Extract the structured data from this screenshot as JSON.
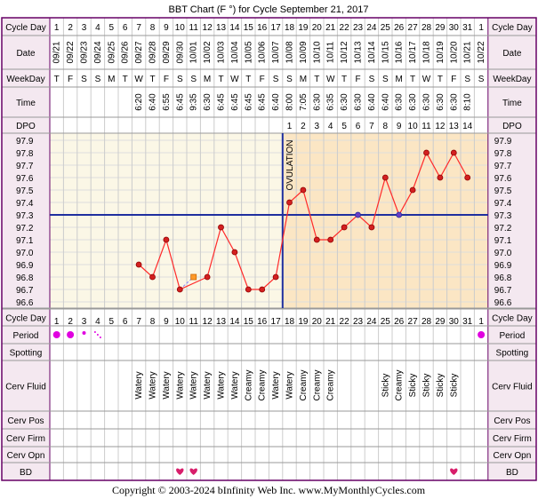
{
  "title": "BBT Chart (F °) for Cycle September 21, 2017",
  "copyright": "Copyright © 2003-2024 bInfinity Web Inc.     www.MyMonthlyCycles.com",
  "row_labels": {
    "cycle_day": "Cycle Day",
    "date": "Date",
    "weekday": "WeekDay",
    "time": "Time",
    "dpo": "DPO",
    "period": "Period",
    "spotting": "Spotting",
    "cerv_fluid": "Cerv Fluid",
    "cerv_pos": "Cerv Pos",
    "cerv_firm": "Cerv Firm",
    "cerv_opn": "Cerv Opn",
    "bd": "BD"
  },
  "ovulation_label": "OVULATION",
  "colors": {
    "border": "#660066",
    "header_bg": "#f4e8f0",
    "pre_ovulation_bg": "#fbf7e6",
    "post_ovulation_bg": "#fbe6c4",
    "grid": "#dddddd",
    "line": "#ff2a2a",
    "point_fill": "#d32020",
    "coverline": "#1f2f9f",
    "ovulation_line": "#1f2f9f",
    "period_dot": "#e000e0",
    "heart": "#d81e6b"
  },
  "days": [
    {
      "d": "1",
      "date": "09/21",
      "wd": "T",
      "time": "",
      "dpo": "",
      "period": "heavy",
      "fluid": "",
      "bd": ""
    },
    {
      "d": "2",
      "date": "09/22",
      "wd": "F",
      "time": "",
      "dpo": "",
      "period": "heavy",
      "fluid": "",
      "bd": ""
    },
    {
      "d": "3",
      "date": "09/23",
      "wd": "S",
      "time": "",
      "dpo": "",
      "period": "medium",
      "fluid": "",
      "bd": ""
    },
    {
      "d": "4",
      "date": "09/24",
      "wd": "S",
      "time": "",
      "dpo": "",
      "period": "light",
      "fluid": "",
      "bd": ""
    },
    {
      "d": "5",
      "date": "09/25",
      "wd": "M",
      "time": "",
      "dpo": "",
      "period": "",
      "fluid": "",
      "bd": ""
    },
    {
      "d": "6",
      "date": "09/26",
      "wd": "T",
      "time": "",
      "dpo": "",
      "period": "",
      "fluid": "",
      "bd": ""
    },
    {
      "d": "7",
      "date": "09/27",
      "wd": "W",
      "time": "6:20",
      "dpo": "",
      "period": "",
      "fluid": "Watery",
      "bd": ""
    },
    {
      "d": "8",
      "date": "09/28",
      "wd": "T",
      "time": "6:40",
      "dpo": "",
      "period": "",
      "fluid": "Watery",
      "bd": ""
    },
    {
      "d": "9",
      "date": "09/29",
      "wd": "F",
      "time": "6:55",
      "dpo": "",
      "period": "",
      "fluid": "Watery",
      "bd": ""
    },
    {
      "d": "10",
      "date": "09/30",
      "wd": "S",
      "time": "6:45",
      "dpo": "",
      "period": "",
      "fluid": "Watery",
      "bd": "heart"
    },
    {
      "d": "11",
      "date": "10/01",
      "wd": "S",
      "time": "9:35",
      "dpo": "",
      "period": "",
      "fluid": "Watery",
      "bd": "heart"
    },
    {
      "d": "12",
      "date": "10/02",
      "wd": "M",
      "time": "6:30",
      "dpo": "",
      "period": "",
      "fluid": "Watery",
      "bd": ""
    },
    {
      "d": "13",
      "date": "10/03",
      "wd": "T",
      "time": "6:45",
      "dpo": "",
      "period": "",
      "fluid": "Watery",
      "bd": ""
    },
    {
      "d": "14",
      "date": "10/04",
      "wd": "W",
      "time": "6:45",
      "dpo": "",
      "period": "",
      "fluid": "Watery",
      "bd": ""
    },
    {
      "d": "15",
      "date": "10/05",
      "wd": "T",
      "time": "6:45",
      "dpo": "",
      "period": "",
      "fluid": "Creamy",
      "bd": ""
    },
    {
      "d": "16",
      "date": "10/06",
      "wd": "F",
      "time": "6:45",
      "dpo": "",
      "period": "",
      "fluid": "Creamy",
      "bd": ""
    },
    {
      "d": "17",
      "date": "10/07",
      "wd": "S",
      "time": "6:40",
      "dpo": "",
      "period": "",
      "fluid": "Watery",
      "bd": ""
    },
    {
      "d": "18",
      "date": "10/08",
      "wd": "S",
      "time": "8:00",
      "dpo": "1",
      "period": "",
      "fluid": "Watery",
      "bd": ""
    },
    {
      "d": "19",
      "date": "10/09",
      "wd": "M",
      "time": "7:05",
      "dpo": "2",
      "period": "",
      "fluid": "Creamy",
      "bd": ""
    },
    {
      "d": "20",
      "date": "10/10",
      "wd": "T",
      "time": "6:30",
      "dpo": "3",
      "period": "",
      "fluid": "Creamy",
      "bd": ""
    },
    {
      "d": "21",
      "date": "10/11",
      "wd": "W",
      "time": "6:35",
      "dpo": "4",
      "period": "",
      "fluid": "Creamy",
      "bd": ""
    },
    {
      "d": "22",
      "date": "10/12",
      "wd": "T",
      "time": "6:30",
      "dpo": "5",
      "period": "",
      "fluid": "",
      "bd": ""
    },
    {
      "d": "23",
      "date": "10/13",
      "wd": "F",
      "time": "6:30",
      "dpo": "6",
      "period": "",
      "fluid": "",
      "bd": ""
    },
    {
      "d": "24",
      "date": "10/14",
      "wd": "S",
      "time": "6:40",
      "dpo": "7",
      "period": "",
      "fluid": "",
      "bd": ""
    },
    {
      "d": "25",
      "date": "10/15",
      "wd": "S",
      "time": "6:40",
      "dpo": "8",
      "period": "",
      "fluid": "Sticky",
      "bd": ""
    },
    {
      "d": "26",
      "date": "10/16",
      "wd": "M",
      "time": "6:30",
      "dpo": "9",
      "period": "",
      "fluid": "Creamy",
      "bd": ""
    },
    {
      "d": "27",
      "date": "10/17",
      "wd": "T",
      "time": "6:30",
      "dpo": "10",
      "period": "",
      "fluid": "Sticky",
      "bd": ""
    },
    {
      "d": "28",
      "date": "10/18",
      "wd": "W",
      "time": "6:30",
      "dpo": "11",
      "period": "",
      "fluid": "Sticky",
      "bd": ""
    },
    {
      "d": "29",
      "date": "10/19",
      "wd": "T",
      "time": "6:30",
      "dpo": "12",
      "period": "",
      "fluid": "Sticky",
      "bd": ""
    },
    {
      "d": "30",
      "date": "10/20",
      "wd": "F",
      "time": "6:30",
      "dpo": "13",
      "period": "",
      "fluid": "Sticky",
      "bd": "heart"
    },
    {
      "d": "31",
      "date": "10/21",
      "wd": "S",
      "time": "8:10",
      "dpo": "14",
      "period": "",
      "fluid": "",
      "bd": ""
    },
    {
      "d": "1",
      "date": "10/22",
      "wd": "S",
      "time": "",
      "dpo": "",
      "period": "heavy",
      "fluid": "",
      "bd": ""
    }
  ],
  "chart_data": {
    "type": "line",
    "x_label": "Cycle Day",
    "y_ticks": [
      "97.9",
      "97.8",
      "97.7",
      "97.6",
      "97.5",
      "97.4",
      "97.3",
      "97.2",
      "97.1",
      "97.0",
      "96.9",
      "96.8",
      "96.7",
      "96.6"
    ],
    "ylim": [
      96.6,
      97.9
    ],
    "coverline": 97.3,
    "ovulation_after_day": 17,
    "series": [
      {
        "points": [
          {
            "day": 7,
            "temp": 96.9
          },
          {
            "day": 8,
            "temp": 96.8
          },
          {
            "day": 9,
            "temp": 97.1
          },
          {
            "day": 10,
            "temp": 96.7
          },
          {
            "day": 12,
            "temp": 96.8
          },
          {
            "day": 13,
            "temp": 97.2
          },
          {
            "day": 14,
            "temp": 97.0
          },
          {
            "day": 15,
            "temp": 96.7
          },
          {
            "day": 16,
            "temp": 96.7
          },
          {
            "day": 17,
            "temp": 96.8
          },
          {
            "day": 18,
            "temp": 97.4
          },
          {
            "day": 19,
            "temp": 97.5
          },
          {
            "day": 20,
            "temp": 97.1
          },
          {
            "day": 21,
            "temp": 97.1
          },
          {
            "day": 22,
            "temp": 97.2
          },
          {
            "day": 23,
            "temp": 97.3
          },
          {
            "day": 24,
            "temp": 97.2
          },
          {
            "day": 25,
            "temp": 97.6
          },
          {
            "day": 26,
            "temp": 97.3
          },
          {
            "day": 27,
            "temp": 97.5
          },
          {
            "day": 28,
            "temp": 97.8
          },
          {
            "day": 29,
            "temp": 97.6
          },
          {
            "day": 30,
            "temp": 97.8
          },
          {
            "day": 31,
            "temp": 97.6
          }
        ],
        "highlight_days": [
          23,
          26
        ]
      }
    ],
    "discarded_points": [
      {
        "day": 11,
        "temp": 96.8
      }
    ]
  }
}
